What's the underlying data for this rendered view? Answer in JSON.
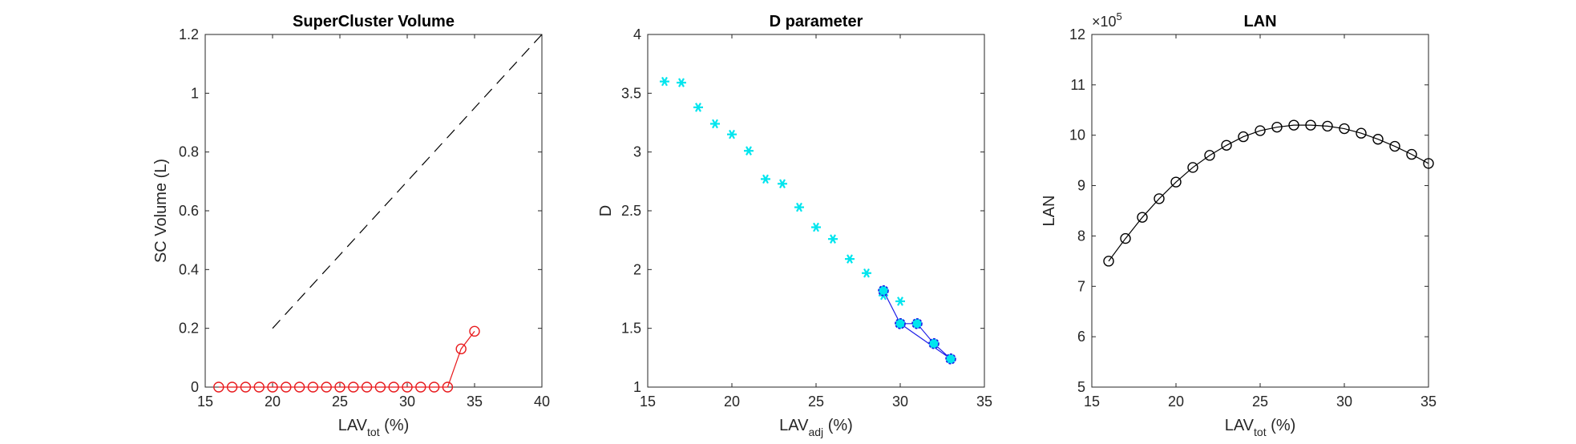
{
  "chart_data": [
    {
      "type": "line",
      "title": "SuperCluster Volume",
      "xlabel_main": "LAV",
      "xlabel_sub": "tot",
      "xlabel_unit": " (%)",
      "ylabel": "SC Volume (L)",
      "xlim": [
        15,
        40
      ],
      "ylim": [
        0,
        1.2
      ],
      "xticks": [
        15,
        20,
        25,
        30,
        35,
        40
      ],
      "yticks": [
        0,
        0.2,
        0.4,
        0.6,
        0.8,
        1,
        1.2
      ],
      "ytick_labels": [
        "0",
        "0.2",
        "0.4",
        "0.6",
        "0.8",
        "1",
        "1.2"
      ],
      "colors": {
        "red": "#e8191c",
        "dash": "#000000"
      },
      "series": [
        {
          "style": "line-circle",
          "color": "#e8191c",
          "x": [
            16,
            17,
            18,
            19,
            20,
            21,
            22,
            23,
            24,
            25,
            26,
            27,
            28,
            29,
            30,
            31,
            32,
            33,
            34,
            35
          ],
          "y": [
            0,
            0,
            0,
            0,
            0,
            0,
            0,
            0,
            0,
            0,
            0,
            0,
            0,
            0,
            0,
            0,
            0,
            0,
            0.13,
            0.19
          ]
        },
        {
          "style": "dashed",
          "color": "#000000",
          "x": [
            20,
            40
          ],
          "y": [
            0.2,
            1.2
          ]
        }
      ]
    },
    {
      "type": "scatter",
      "title": "D parameter",
      "xlabel_main": "LAV",
      "xlabel_sub": "adj",
      "xlabel_unit": " (%)",
      "ylabel": "D",
      "xlim": [
        15,
        35
      ],
      "ylim": [
        1,
        4
      ],
      "xticks": [
        15,
        20,
        25,
        30,
        35
      ],
      "yticks": [
        1,
        1.5,
        2,
        2.5,
        3,
        3.5,
        4
      ],
      "ytick_labels": [
        "1",
        "1.5",
        "2",
        "2.5",
        "3",
        "3.5",
        "4"
      ],
      "colors": {
        "cyan": "#00e5ee",
        "blue": "#1f1fe8"
      },
      "series": [
        {
          "style": "asterisk",
          "color": "#00e5ee",
          "x": [
            16,
            17,
            18,
            19,
            20,
            21,
            22,
            23,
            24,
            25,
            26,
            27,
            28,
            29,
            30
          ],
          "y": [
            3.6,
            3.59,
            3.38,
            3.24,
            3.15,
            3.01,
            2.77,
            2.73,
            2.53,
            2.36,
            2.26,
            2.09,
            1.97,
            1.78,
            1.73
          ]
        },
        {
          "style": "line-filled-circle",
          "color": "#1f1fe8",
          "fill": "#00e5ee",
          "x": [
            29,
            30,
            31,
            32,
            33,
            30
          ],
          "y": [
            1.82,
            1.54,
            1.54,
            1.37,
            1.24,
            1.54
          ]
        }
      ]
    },
    {
      "type": "line",
      "title": "LAN",
      "xlabel_main": "LAV",
      "xlabel_sub": "tot",
      "xlabel_unit": " (%)",
      "ylabel": "LAN",
      "exponent_base": "×10",
      "exponent_power": "5",
      "xlim": [
        15,
        35
      ],
      "ylim": [
        5,
        12
      ],
      "xticks": [
        15,
        20,
        25,
        30,
        35
      ],
      "yticks": [
        5,
        6,
        7,
        8,
        9,
        10,
        11,
        12
      ],
      "ytick_labels": [
        "5",
        "6",
        "7",
        "8",
        "9",
        "10",
        "11",
        "12"
      ],
      "colors": {
        "black": "#000000"
      },
      "series": [
        {
          "style": "line-circle",
          "color": "#000000",
          "x": [
            16,
            17,
            18,
            19,
            20,
            21,
            22,
            23,
            24,
            25,
            26,
            27,
            28,
            29,
            30,
            31,
            32,
            33,
            34,
            35
          ],
          "y": [
            7.5,
            7.95,
            8.37,
            8.74,
            9.07,
            9.36,
            9.6,
            9.8,
            9.97,
            10.09,
            10.16,
            10.2,
            10.2,
            10.18,
            10.13,
            10.04,
            9.92,
            9.78,
            9.62,
            9.44
          ]
        }
      ]
    }
  ]
}
